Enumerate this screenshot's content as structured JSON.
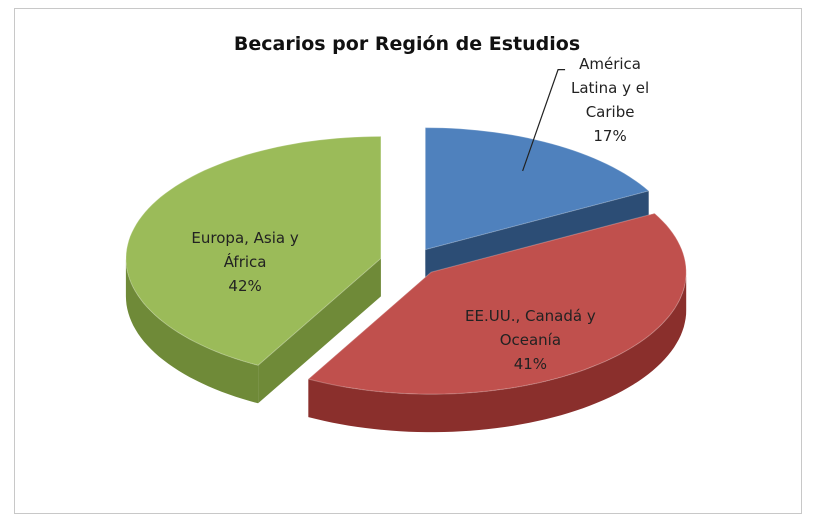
{
  "chart_data": {
    "type": "pie3d",
    "title": "Becarios por Región de Estudios",
    "categories": [
      "América Latina y el Caribe",
      "EE.UU., Canadá y Oceanía",
      "Europa, Asia y África"
    ],
    "values": [
      17,
      41,
      42
    ],
    "value_labels": [
      "17%",
      "41%",
      "42%"
    ],
    "colors": [
      "#4f81bd",
      "#c0504d",
      "#9bbb59"
    ],
    "side_colors": [
      "#2c4d75",
      "#8a2f2c",
      "#6f8a38"
    ]
  }
}
